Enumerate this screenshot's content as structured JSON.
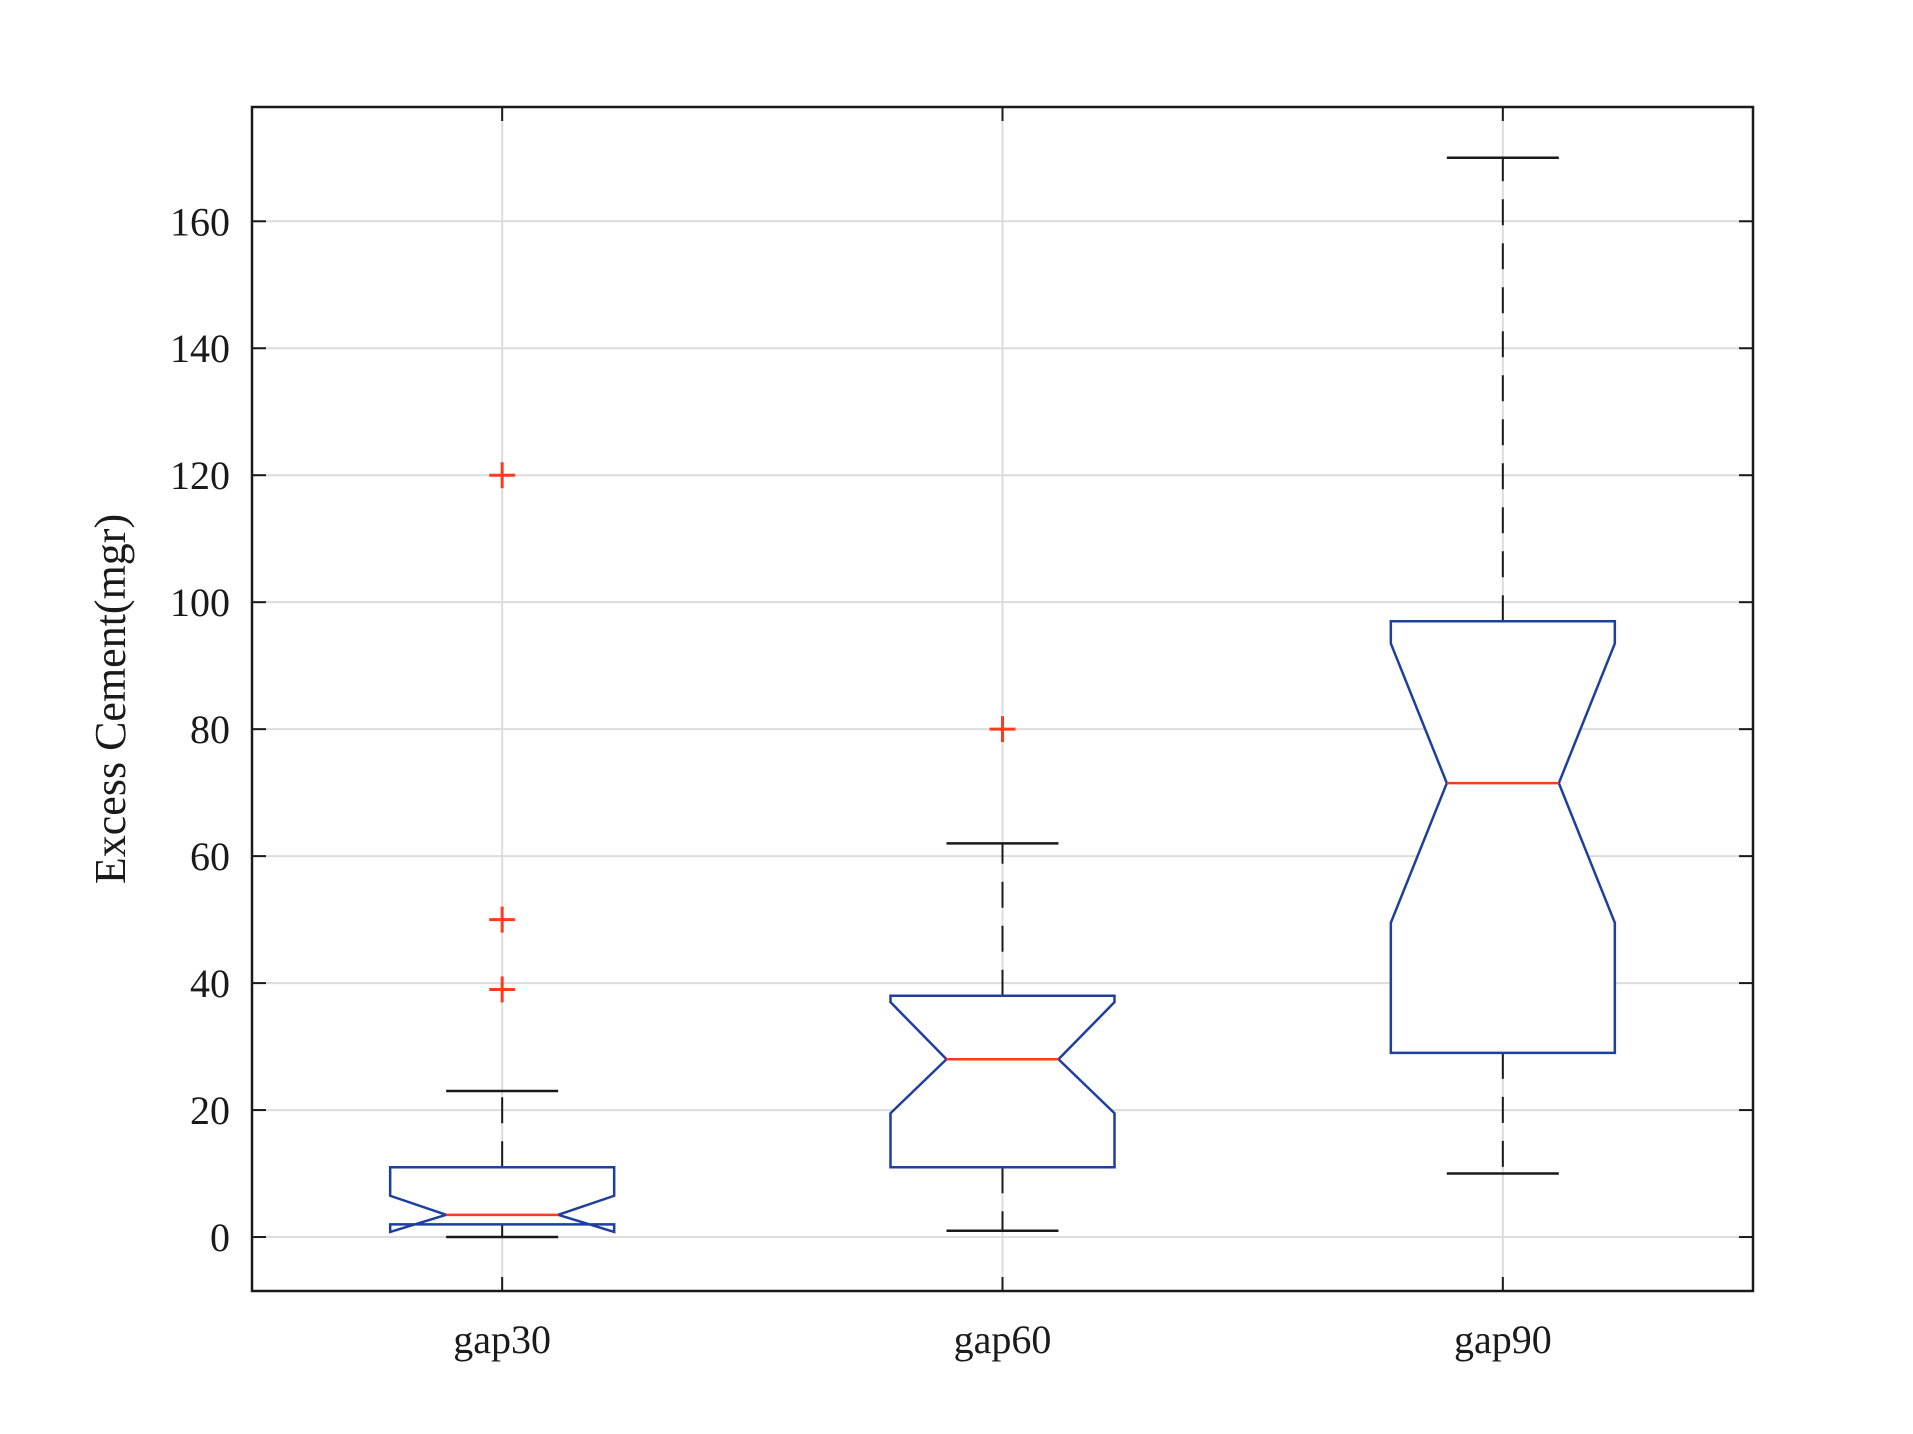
{
  "chart_data": {
    "type": "boxplot",
    "notched": true,
    "title": "",
    "xlabel": "",
    "ylabel": "Excess Cement(mgr)",
    "ylim": [
      -8.5,
      178
    ],
    "yticks": [
      0,
      20,
      40,
      60,
      80,
      100,
      120,
      140,
      160
    ],
    "grid": true,
    "categories": [
      "gap30",
      "gap60",
      "gap90"
    ],
    "boxes": [
      {
        "label": "gap30",
        "whisker_low": 0,
        "q1": 2,
        "median": 3.5,
        "q3": 11,
        "whisker_high": 23,
        "notch_low": 0.8,
        "notch_high": 6.5,
        "outliers": [
          39,
          50,
          120
        ]
      },
      {
        "label": "gap60",
        "whisker_low": 1,
        "q1": 11,
        "median": 28,
        "q3": 38,
        "whisker_high": 62,
        "notch_low": 19.5,
        "notch_high": 37,
        "outliers": [
          80
        ]
      },
      {
        "label": "gap90",
        "whisker_low": 10,
        "q1": 29,
        "median": 71.5,
        "q3": 97,
        "whisker_high": 170,
        "notch_low": 49.5,
        "notch_high": 93.5,
        "outliers": []
      }
    ],
    "colors": {
      "box": "#1f3f9f",
      "median": "#ff3b1f",
      "whisker": "#1a1a1a",
      "outlier": "#ff3b1f",
      "grid": "#dcdcdc",
      "axis": "#1a1a1a"
    }
  }
}
